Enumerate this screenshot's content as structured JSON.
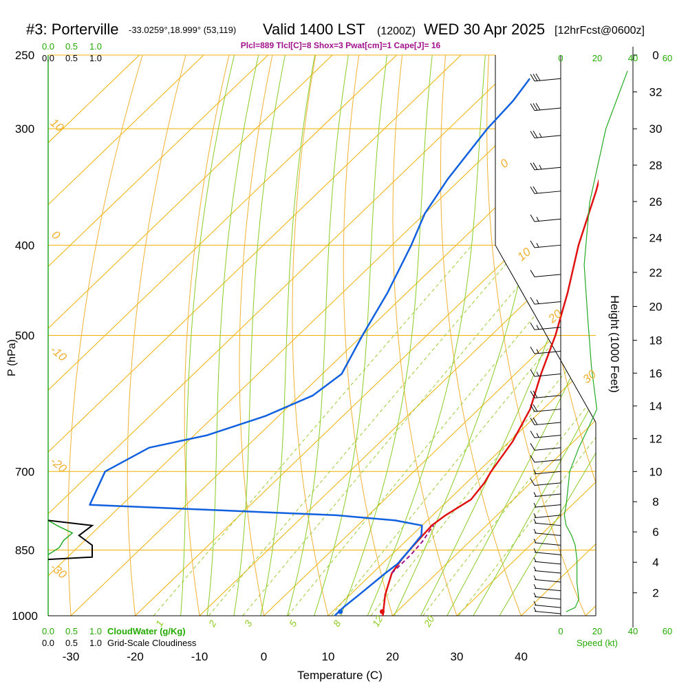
{
  "header": {
    "station": "#3: Porterville",
    "coords": "-33.0259°,18.999° (53,119)",
    "valid": "Valid 1400 LST",
    "utc": "(1200Z)",
    "date": "WED 30 Apr 2025",
    "forecast": "[12hrFcst@0600z]",
    "indices": "Plcl=889 Tlcl[C]=8 Shox=3 Pwat[cm]=1 Cape[J]= 16"
  },
  "colors": {
    "temperature": "#e01010",
    "dewpoint": "#1060e0",
    "isobar": "#f0b000",
    "isotherm": "#f0b000",
    "dry_adiabat": "#f0b030",
    "moist_adiabat": "#88cc22",
    "mixing_ratio": "#99cc33",
    "cloud_water": "#22aa22",
    "wind_speed": "#22aa22",
    "parcel": "#a0108a"
  },
  "axes_labels": {
    "x_title": "Temperature (C)",
    "y_title": "P (hPa)",
    "height_title": "Height (1000 Feet)",
    "speed_title": "Speed (kt)",
    "cloudwater_title": "CloudWater (g/Kg)",
    "cloudiness_title": "Grid-Scale Cloudiness"
  },
  "chart_data": {
    "type": "line",
    "pressure_ticks": [
      250,
      300,
      400,
      500,
      700,
      850,
      1000
    ],
    "temperature_ticks": [
      -30,
      -20,
      -10,
      0,
      10,
      20,
      30,
      40
    ],
    "height_ticks_kft": [
      0,
      2,
      4,
      6,
      8,
      10,
      12,
      14,
      16,
      18,
      20,
      22,
      24,
      26,
      28,
      30,
      32
    ],
    "speed_ticks_kt": [
      "0",
      "20",
      "40",
      "60"
    ],
    "cloudwater_ticks": [
      "0.0",
      "0.5",
      "1.0"
    ],
    "cloudiness_ticks": [
      "0.0",
      "0.5",
      "1.0"
    ],
    "dry_adiabat_labels": [
      "0",
      "10",
      "20",
      "30"
    ],
    "dry_adiabat_left_labels": [
      "10",
      "0",
      "-10",
      "-20",
      "-30"
    ],
    "mixing_ratio_labels": [
      "1",
      "2",
      "3",
      "5",
      "8",
      "12",
      "20"
    ],
    "series": [
      {
        "name": "temperature",
        "points": [
          {
            "p": 1000,
            "t": 18.5
          },
          {
            "p": 950,
            "t": 15.5
          },
          {
            "p": 900,
            "t": 13.0
          },
          {
            "p": 870,
            "t": 12.3
          },
          {
            "p": 850,
            "t": 12.0
          },
          {
            "p": 800,
            "t": 11.5
          },
          {
            "p": 780,
            "t": 12.0
          },
          {
            "p": 750,
            "t": 13.4
          },
          {
            "p": 720,
            "t": 12.8
          },
          {
            "p": 700,
            "t": 12.0
          },
          {
            "p": 650,
            "t": 10.5
          },
          {
            "p": 600,
            "t": 8.0
          },
          {
            "p": 550,
            "t": 4.0
          },
          {
            "p": 500,
            "t": 0.0
          },
          {
            "p": 450,
            "t": -5.0
          },
          {
            "p": 400,
            "t": -11.0
          },
          {
            "p": 350,
            "t": -17.0
          },
          {
            "p": 300,
            "t": -24.5
          },
          {
            "p": 270,
            "t": -30.5
          },
          {
            "p": 260,
            "t": -32.0
          }
        ]
      },
      {
        "name": "dewpoint",
        "points": [
          {
            "p": 1000,
            "t": 11.0
          },
          {
            "p": 980,
            "t": 11.0
          },
          {
            "p": 950,
            "t": 11.4
          },
          {
            "p": 900,
            "t": 12.0
          },
          {
            "p": 880,
            "t": 12.4
          },
          {
            "p": 850,
            "t": 12.0
          },
          {
            "p": 820,
            "t": 11.5
          },
          {
            "p": 800,
            "t": 10.0
          },
          {
            "p": 790,
            "t": 5.0
          },
          {
            "p": 780,
            "t": -5.0
          },
          {
            "p": 770,
            "t": -25.0
          },
          {
            "p": 760,
            "t": -45.0
          },
          {
            "p": 700,
            "t": -48.0
          },
          {
            "p": 660,
            "t": -45.0
          },
          {
            "p": 640,
            "t": -38.0
          },
          {
            "p": 610,
            "t": -32.0
          },
          {
            "p": 580,
            "t": -28.0
          },
          {
            "p": 550,
            "t": -27.0
          },
          {
            "p": 500,
            "t": -30.0
          },
          {
            "p": 450,
            "t": -33.0
          },
          {
            "p": 400,
            "t": -37.0
          },
          {
            "p": 370,
            "t": -40.0
          },
          {
            "p": 340,
            "t": -42.0
          },
          {
            "p": 300,
            "t": -44.0
          },
          {
            "p": 280,
            "t": -44.5
          },
          {
            "p": 265,
            "t": -45.5
          }
        ]
      },
      {
        "name": "parcel",
        "points": [
          {
            "p": 900,
            "t": 13.0
          },
          {
            "p": 860,
            "t": 13.0
          },
          {
            "p": 830,
            "t": 12.6
          },
          {
            "p": 810,
            "t": 12.0
          },
          {
            "p": 800,
            "t": 11.8
          }
        ]
      }
    ],
    "surface": {
      "t": 18.5,
      "td": 12.0
    },
    "height_scale": [
      {
        "p": 1000,
        "kft": 0.5
      },
      {
        "p": 850,
        "kft": 4.8
      },
      {
        "p": 700,
        "kft": 10.0
      },
      {
        "p": 500,
        "kft": 18.3
      },
      {
        "p": 400,
        "kft": 23.6
      },
      {
        "p": 300,
        "kft": 30.0
      },
      {
        "p": 250,
        "kft": 34.0
      }
    ],
    "wind_speed_profile": [
      {
        "p": 990,
        "kt": 3
      },
      {
        "p": 980,
        "kt": 8
      },
      {
        "p": 960,
        "kt": 10
      },
      {
        "p": 920,
        "kt": 9
      },
      {
        "p": 870,
        "kt": 9
      },
      {
        "p": 840,
        "kt": 8
      },
      {
        "p": 820,
        "kt": 6
      },
      {
        "p": 800,
        "kt": 3
      },
      {
        "p": 780,
        "kt": 2
      },
      {
        "p": 760,
        "kt": 3
      },
      {
        "p": 730,
        "kt": 4
      },
      {
        "p": 700,
        "kt": 5
      },
      {
        "p": 660,
        "kt": 10
      },
      {
        "p": 630,
        "kt": 15
      },
      {
        "p": 600,
        "kt": 20
      },
      {
        "p": 540,
        "kt": 17
      },
      {
        "p": 480,
        "kt": 15
      },
      {
        "p": 420,
        "kt": 13
      },
      {
        "p": 360,
        "kt": 16
      },
      {
        "p": 300,
        "kt": 25
      },
      {
        "p": 260,
        "kt": 37
      }
    ],
    "cloud_water_profile": [
      {
        "p": 860,
        "v": 0.0
      },
      {
        "p": 845,
        "v": 0.25
      },
      {
        "p": 830,
        "v": 0.35
      },
      {
        "p": 815,
        "v": 0.55
      },
      {
        "p": 800,
        "v": 0.2
      },
      {
        "p": 790,
        "v": 0.0
      }
    ],
    "cloudiness_profile": [
      {
        "p": 870,
        "v": 0.0
      },
      {
        "p": 865,
        "v": 1.0
      },
      {
        "p": 840,
        "v": 1.0
      },
      {
        "p": 820,
        "v": 0.7
      },
      {
        "p": 800,
        "v": 1.0
      },
      {
        "p": 790,
        "v": 0.0
      }
    ],
    "wind_barbs": [
      {
        "p": 265,
        "flags": 0,
        "full": 3,
        "half": 0
      },
      {
        "p": 285,
        "flags": 0,
        "full": 3,
        "half": 0
      },
      {
        "p": 305,
        "flags": 0,
        "full": 2,
        "half": 1
      },
      {
        "p": 330,
        "flags": 0,
        "full": 2,
        "half": 1
      },
      {
        "p": 350,
        "flags": 0,
        "full": 2,
        "half": 0
      },
      {
        "p": 375,
        "flags": 0,
        "full": 1,
        "half": 1
      },
      {
        "p": 400,
        "flags": 0,
        "full": 1,
        "half": 1
      },
      {
        "p": 430,
        "flags": 0,
        "full": 1,
        "half": 0
      },
      {
        "p": 460,
        "flags": 0,
        "full": 1,
        "half": 1
      },
      {
        "p": 490,
        "flags": 0,
        "full": 1,
        "half": 1
      },
      {
        "p": 520,
        "flags": 0,
        "full": 1,
        "half": 1
      },
      {
        "p": 550,
        "flags": 0,
        "full": 1,
        "half": 1
      },
      {
        "p": 580,
        "flags": 0,
        "full": 2,
        "half": 0
      },
      {
        "p": 600,
        "flags": 0,
        "full": 2,
        "half": 0
      },
      {
        "p": 620,
        "flags": 0,
        "full": 2,
        "half": 0
      },
      {
        "p": 640,
        "flags": 0,
        "full": 1,
        "half": 1
      },
      {
        "p": 660,
        "flags": 0,
        "full": 1,
        "half": 0
      },
      {
        "p": 680,
        "flags": 0,
        "full": 1,
        "half": 0
      },
      {
        "p": 700,
        "flags": 0,
        "full": 0,
        "half": 1
      },
      {
        "p": 720,
        "flags": 0,
        "full": 1,
        "half": 0
      },
      {
        "p": 740,
        "flags": 0,
        "full": 0,
        "half": 1
      },
      {
        "p": 760,
        "flags": 0,
        "full": 0,
        "half": 1
      },
      {
        "p": 780,
        "flags": 0,
        "full": 0,
        "half": 1
      },
      {
        "p": 800,
        "flags": 0,
        "full": 0,
        "half": 1
      },
      {
        "p": 820,
        "flags": 0,
        "full": 0,
        "half": 1
      },
      {
        "p": 840,
        "flags": 0,
        "full": 0,
        "half": 1
      },
      {
        "p": 860,
        "flags": 0,
        "full": 0,
        "half": 1
      },
      {
        "p": 880,
        "flags": 0,
        "full": 0,
        "half": 1
      },
      {
        "p": 900,
        "flags": 0,
        "full": 0,
        "half": 1
      },
      {
        "p": 920,
        "flags": 0,
        "full": 0,
        "half": 1
      },
      {
        "p": 940,
        "flags": 0,
        "full": 0,
        "half": 1
      },
      {
        "p": 960,
        "flags": 0,
        "full": 0,
        "half": 1
      },
      {
        "p": 980,
        "flags": 0,
        "full": 0,
        "half": 1
      },
      {
        "p": 995,
        "flags": 0,
        "full": 0,
        "half": 1
      }
    ]
  }
}
